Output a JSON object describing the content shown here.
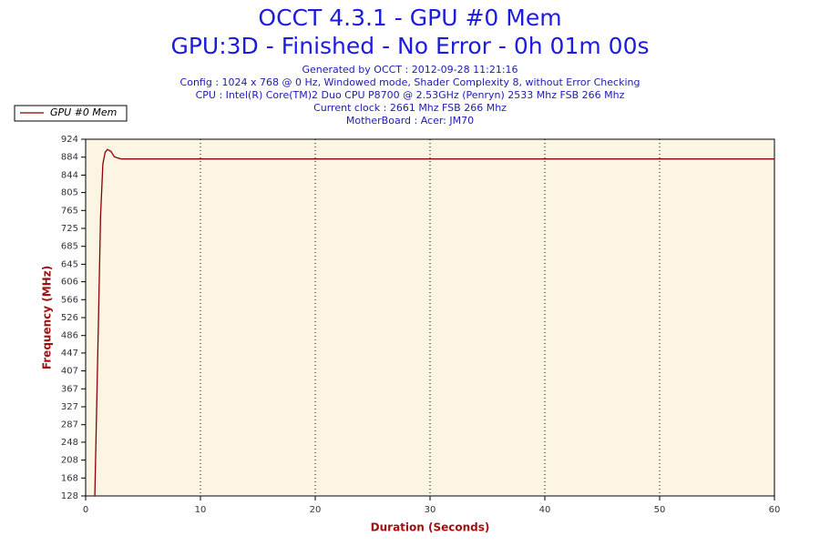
{
  "chart_data": {
    "type": "line",
    "title": "OCCT 4.3.1 - GPU #0 Mem",
    "subtitle": "GPU:3D - Finished - No Error - 0h 01m 00s",
    "info": [
      "Generated by OCCT : 2012-09-28 11:21:16",
      "Config : 1024 x 768 @ 0 Hz, Windowed mode, Shader Complexity 8, without Error Checking",
      "CPU : Intel(R) Core(TM)2 Duo CPU P8700 @ 2.53GHz (Penryn) 2533 Mhz FSB 266 Mhz",
      "Current clock : 2661 Mhz FSB 266 Mhz",
      "MotherBoard : Acer: JM70"
    ],
    "x_label": "Duration (Seconds)",
    "y_label": "Frequency (MHz)",
    "x": [
      0.8,
      1.1,
      1.3,
      1.5,
      1.7,
      1.9,
      2.2,
      2.5,
      2.8,
      3.1,
      60
    ],
    "series": [
      {
        "name": "GPU #0 Mem",
        "color": "#8b0000",
        "values": [
          128,
          500,
          753,
          869,
          895,
          901,
          897,
          885,
          882,
          880,
          880
        ]
      }
    ],
    "xlim": [
      0,
      60
    ],
    "xticks": [
      0,
      10,
      20,
      30,
      40,
      50,
      60
    ],
    "ylim": [
      128,
      924
    ],
    "yticks": [
      128,
      168,
      208,
      248,
      287,
      327,
      367,
      407,
      447,
      486,
      526,
      566,
      606,
      645,
      685,
      725,
      765,
      805,
      844,
      884,
      924
    ],
    "grid": true,
    "legend": "top-left"
  }
}
